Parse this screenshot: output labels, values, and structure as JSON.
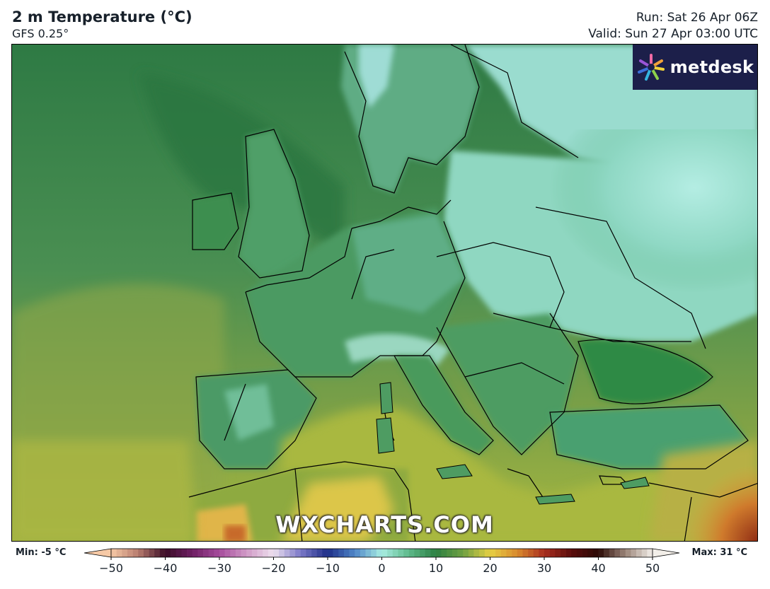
{
  "header": {
    "title": "2 m Temperature (°C)",
    "subtitle": "GFS 0.25°",
    "run": "Run: Sat 26 Apr 06Z",
    "valid": "Valid: Sun 27 Apr 03:00 UTC"
  },
  "logo": {
    "brand": "metdesk"
  },
  "watermark": "WXCHARTS.COM",
  "colorbar": {
    "min_label": "Min: -5 °C",
    "max_label": "Max: 31 °C",
    "ticks": [
      "−50",
      "−40",
      "−30",
      "−20",
      "−10",
      "0",
      "10",
      "20",
      "30",
      "40",
      "50"
    ],
    "range": [
      -50,
      50
    ],
    "stops": [
      {
        "v": -50,
        "c": "#f6c9a6"
      },
      {
        "v": -45,
        "c": "#b87c6e"
      },
      {
        "v": -40,
        "c": "#3a0c26"
      },
      {
        "v": -35,
        "c": "#6e1f63"
      },
      {
        "v": -30,
        "c": "#a64b9c"
      },
      {
        "v": -25,
        "c": "#d09ac6"
      },
      {
        "v": -20,
        "c": "#eee0ee"
      },
      {
        "v": -15,
        "c": "#7a78c8"
      },
      {
        "v": -10,
        "c": "#1e2e86"
      },
      {
        "v": -5,
        "c": "#4f86c8"
      },
      {
        "v": 0,
        "c": "#a8ede2"
      },
      {
        "v": 5,
        "c": "#5eb98a"
      },
      {
        "v": 10,
        "c": "#2c7f42"
      },
      {
        "v": 15,
        "c": "#6fa042"
      },
      {
        "v": 20,
        "c": "#e6d043"
      },
      {
        "v": 25,
        "c": "#d98a2e"
      },
      {
        "v": 30,
        "c": "#a82d1e"
      },
      {
        "v": 35,
        "c": "#5a0c0c"
      },
      {
        "v": 40,
        "c": "#2b0a05"
      },
      {
        "v": 45,
        "c": "#9a8478"
      },
      {
        "v": 50,
        "c": "#f3efe9"
      }
    ]
  },
  "colors": {
    "ocean_atlantic": "#3f8a52",
    "ocean_north": "#2f7f44",
    "ocean_south": "#8fa844",
    "mediterranean": "#a8b93e",
    "land_west": "#3f8f55",
    "land_central": "#5fae86",
    "land_east_cold": "#a6e6db",
    "sahara_warm": "#e4c84a",
    "hot_spot": "#a53a1c",
    "borders": "#000000"
  }
}
